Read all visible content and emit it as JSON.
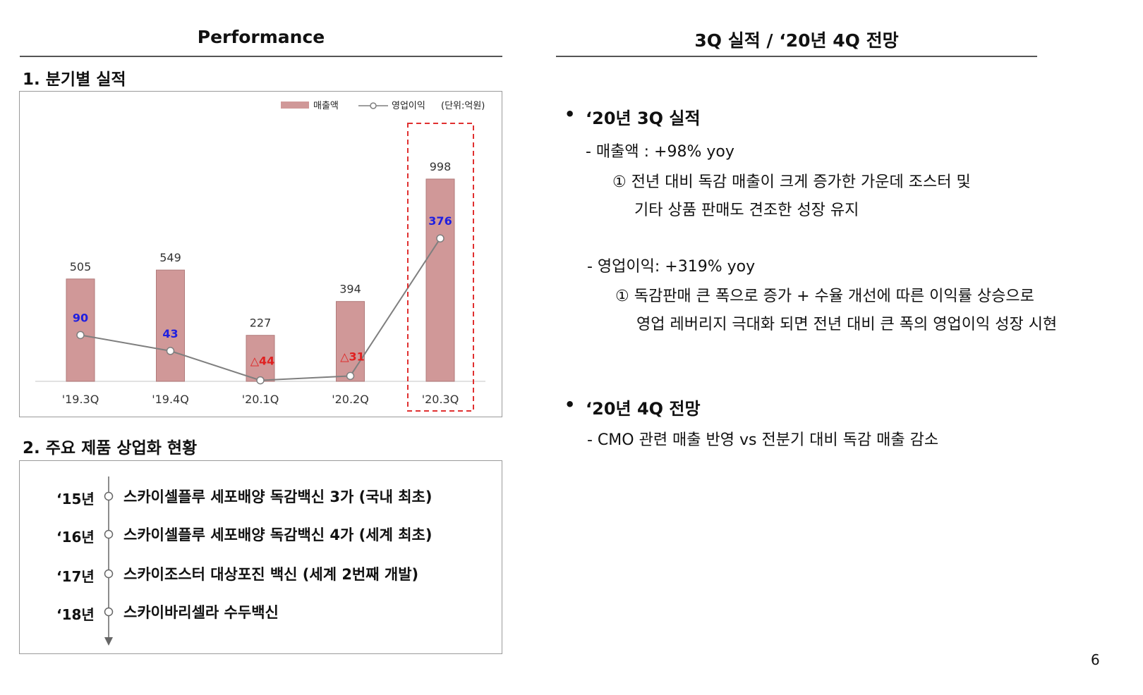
{
  "left": {
    "header": "Performance",
    "section1_title": "1. 분기별 실적",
    "section2_title": "2. 주요 제품 상업화 현황"
  },
  "right": {
    "header": "3Q 실적 / ‘20년 4Q 전망",
    "block1": {
      "bullet": "•",
      "title": "‘20년 3Q 실적",
      "line1": "- 매출액 : +98% yoy",
      "line2": "① 전년 대비 독감 매출이 크게 증가한 가운데 조스터 및",
      "line3": "기타 상품 판매도 견조한 성장 유지",
      "line4": "- 영업이익: +319% yoy",
      "line5": "① 독감판매 큰 폭으로 증가 + 수율 개선에 따른 이익률 상승으로",
      "line6": "영업 레버리지 극대화 되면 전년 대비 큰 폭의 영업이익 성장 시현"
    },
    "block2": {
      "bullet": "•",
      "title": "‘20년 4Q 전망",
      "line1": "-   CMO 관련 매출 반영 vs 전분기 대비 독감 매출 감소"
    }
  },
  "timeline": [
    {
      "year": "‘15년",
      "text": "스카이셀플루 세포배양 독감백신 3가 (국내 최초)"
    },
    {
      "year": "‘16년",
      "text": "스카이셀플루 세포배양 독감백신 4가 (세계 최초)"
    },
    {
      "year": "‘17년",
      "text": "스카이조스터 대상포진 백신 (세계 2번째 개발)"
    },
    {
      "year": "‘18년",
      "text": "스카이바리셀라 수두백신"
    }
  ],
  "page_number": "6",
  "colors": {
    "bar": "#d09898",
    "bar_stroke": "#b07a7a",
    "line": "#7f7f7f",
    "profit_positive": "#1f1fe0",
    "profit_negative": "#e02020",
    "highlight": "#e03030"
  },
  "chart_data": {
    "type": "bar",
    "categories": [
      "'19.3Q",
      "'19.4Q",
      "'20.1Q",
      "'20.2Q",
      "'20.3Q"
    ],
    "series": [
      {
        "name": "매출액",
        "type": "bar",
        "values": [
          505,
          549,
          227,
          394,
          998
        ],
        "labels": [
          "505",
          "549",
          "227",
          "394",
          "998"
        ]
      },
      {
        "name": "영업이익",
        "type": "line",
        "values": [
          90,
          43,
          -44,
          -31,
          376
        ],
        "labels": [
          "90",
          "43",
          "△44",
          "△31",
          "376"
        ]
      }
    ],
    "legend": {
      "items": [
        "매출액",
        "영업이익"
      ],
      "unit": "(단위:억원)",
      "position": "top-right"
    },
    "highlight_category": "'20.3Q"
  }
}
